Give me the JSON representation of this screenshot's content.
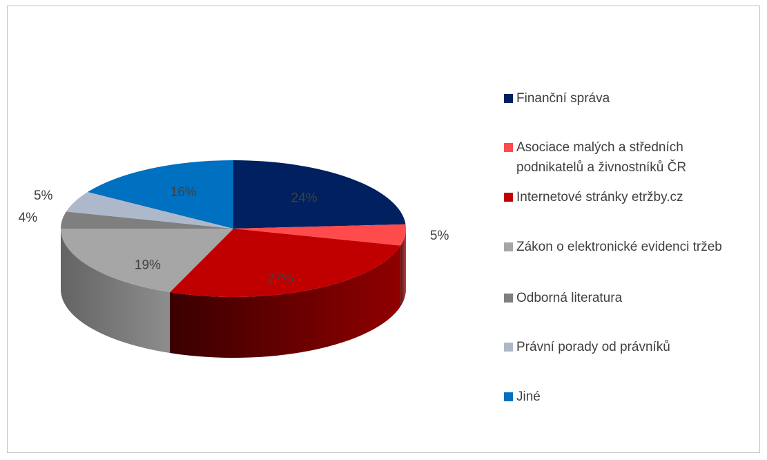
{
  "chart_data": {
    "type": "pie3d",
    "categories": [
      "Finanční správa",
      "Asociace malých a středních podnikatelů a živnostníků ČR",
      "Internetové stránky etržby.cz",
      "Zákon o elektronické evidenci tržeb",
      "Odborná literatura",
      "Právní porady od právníků",
      "Jiné"
    ],
    "values": [
      24,
      5,
      27,
      19,
      4,
      5,
      16
    ],
    "value_labels": [
      "24%",
      "5%",
      "27%",
      "19%",
      "4%",
      "5%",
      "16%"
    ],
    "colors": [
      "#002060",
      "#ff4b4b",
      "#c00000",
      "#a6a6a6",
      "#7f7f7f",
      "#adb9ca",
      "#0070c0"
    ],
    "legend": "right"
  }
}
